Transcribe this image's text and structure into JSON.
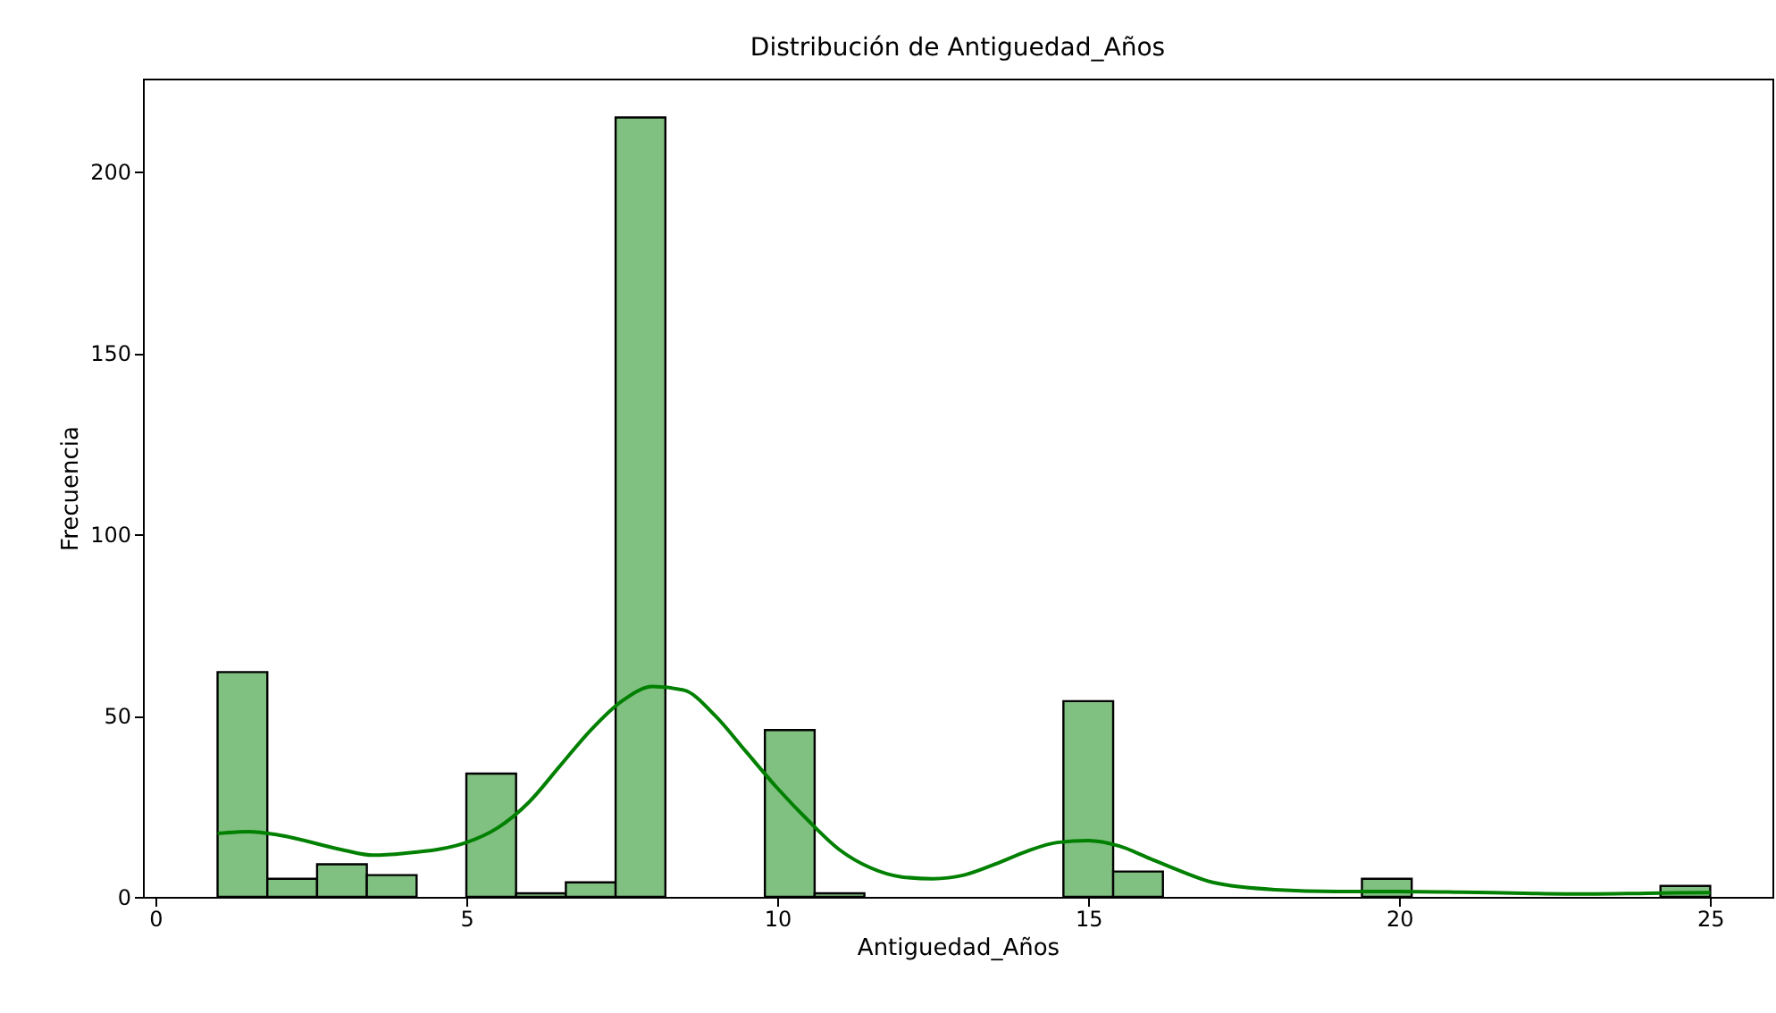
{
  "chart_data": {
    "type": "histogram",
    "title": "Distribución de Antiguedad_Años",
    "xlabel": "Antiguedad_Años",
    "ylabel": "Frecuencia",
    "bins": [
      1,
      1.8,
      2.6,
      3.4,
      4.2,
      5,
      5.8,
      6.6,
      7.4,
      8.2,
      9,
      9.8,
      10.6,
      11.4,
      12.2,
      13,
      13.8,
      14.6,
      15.4,
      16.2,
      17,
      17.8,
      18.6,
      19.4,
      20.2,
      21,
      21.8,
      22.6,
      23.4,
      24.2,
      25
    ],
    "series": [
      {
        "color": "#80c080",
        "values": [
          62,
          5,
          9,
          6,
          0,
          34,
          1,
          4,
          215,
          0,
          0,
          46,
          1,
          0,
          0,
          0,
          0,
          54,
          7,
          0,
          0,
          0,
          0,
          5,
          0,
          0,
          0,
          0,
          0,
          3
        ]
      },
      {
        "type": "line",
        "color": "#008000",
        "x": [
          1,
          1.5,
          2,
          3,
          3.5,
          4,
          5,
          5.5,
          6,
          6.5,
          7,
          7.5,
          8,
          8.5,
          9,
          9.5,
          10,
          10.5,
          11,
          11.5,
          12,
          12.5,
          13,
          13.5,
          14,
          14.5,
          15,
          15.5,
          16,
          16.5,
          17,
          18,
          19,
          20,
          21,
          22,
          23,
          24,
          25
        ],
        "values": [
          17.5,
          18,
          17,
          13,
          11.5,
          12,
          15,
          19,
          26,
          36,
          46,
          54,
          58,
          57,
          50,
          40,
          30,
          21,
          13,
          8,
          5.5,
          5,
          6,
          9,
          12.5,
          15,
          15.5,
          14,
          10.5,
          7,
          4,
          2,
          1.5,
          1.5,
          1.3,
          1,
          0.8,
          1,
          1.2
        ]
      }
    ],
    "xlim": [
      -0.2,
      26
    ],
    "ylim": [
      0,
      225.7
    ],
    "xticks": [
      0,
      5,
      10,
      15,
      20,
      25
    ],
    "yticks": [
      0,
      50,
      100,
      150,
      200
    ],
    "grid": false
  }
}
